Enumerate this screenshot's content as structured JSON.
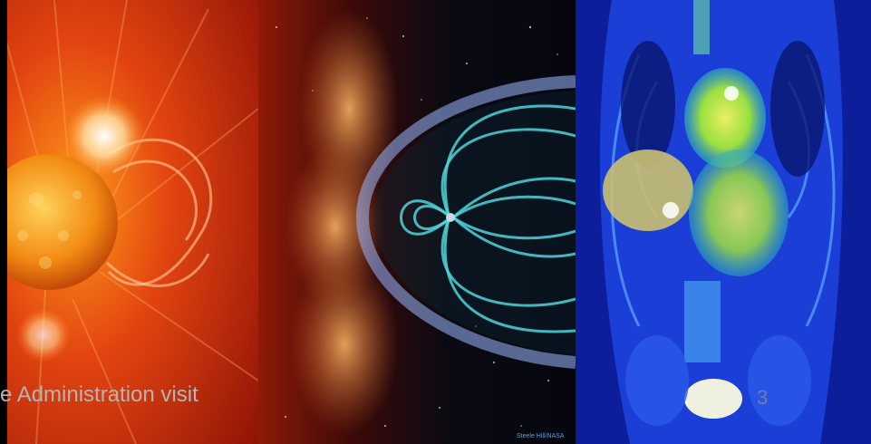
{
  "caption": "e Administration visit",
  "image_credit": "Steele Hill/NASA",
  "page_number": "3",
  "colors": {
    "sun_core": "#f08a10",
    "corona": "#c81e08",
    "magnetosphere": "#4fd3d8",
    "scan_background": "#1b3fd6"
  }
}
